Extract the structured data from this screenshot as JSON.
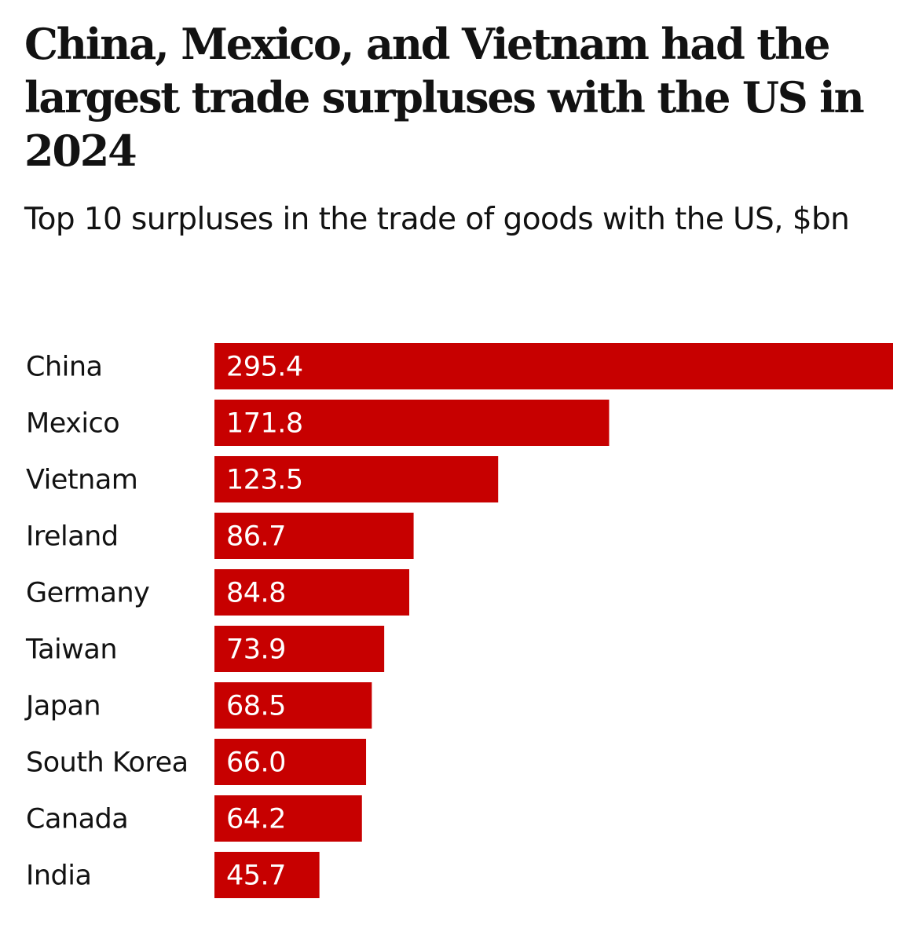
{
  "header": {
    "title": "China, Mexico, and Vietnam had the largest trade surpluses with the US in 2024",
    "subtitle": "Top 10 surpluses in the trade of goods with the US, $bn"
  },
  "colors": {
    "bar": "#c70000",
    "text": "#121212",
    "value_text": "#ffffff",
    "background": "#ffffff"
  },
  "chart_data": {
    "type": "bar",
    "orientation": "horizontal",
    "title": "China, Mexico, and Vietnam had the largest trade surpluses with the US in 2024",
    "subtitle": "Top 10 surpluses in the trade of goods with the US, $bn",
    "xlabel": "",
    "ylabel": "",
    "categories": [
      "China",
      "Mexico",
      "Vietnam",
      "Ireland",
      "Germany",
      "Taiwan",
      "Japan",
      "South Korea",
      "Canada",
      "India"
    ],
    "values": [
      295.4,
      171.8,
      123.5,
      86.7,
      84.8,
      73.9,
      68.5,
      66.0,
      64.2,
      45.7
    ],
    "value_labels": [
      "295.4",
      "171.8",
      "123.5",
      "86.7",
      "84.8",
      "73.9",
      "68.5",
      "66.0",
      "64.2",
      "45.7"
    ],
    "xlim": [
      0,
      295.4
    ],
    "unit": "$bn",
    "grid": false,
    "legend": "none"
  }
}
